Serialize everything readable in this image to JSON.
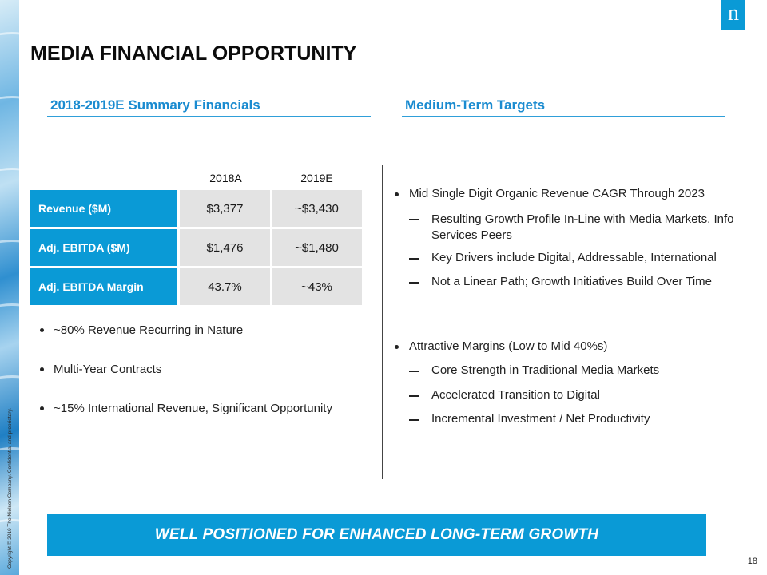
{
  "copyright": "Copyright © 2019 The Nielsen Company. Confidential and proprietary.",
  "logo_glyph": "n",
  "title": "MEDIA FINANCIAL OPPORTUNITY",
  "left_section": {
    "header": "2018-2019E Summary Financials",
    "table": {
      "columns": [
        "2018A",
        "2019E"
      ],
      "rows": [
        {
          "label": "Revenue  ($M)",
          "values": [
            "$3,377",
            "~$3,430"
          ]
        },
        {
          "label": "Adj.  EBITDA  ($M)",
          "values": [
            "$1,476",
            "~$1,480"
          ]
        },
        {
          "label": "Adj.  EBITDA  Margin",
          "values": [
            "43.7%",
            "~43%"
          ]
        }
      ]
    },
    "bullets": [
      "~80%  Revenue  Recurring  in Nature",
      "Multi-Year  Contracts",
      "~15%  International  Revenue,  Significant  Opportunity"
    ]
  },
  "right_section": {
    "header": "Medium-Term Targets",
    "group1": {
      "bullet": "Mid  Single  Digit  Organic  Revenue  CAGR  Through  2023",
      "subs": [
        "Resulting  Growth  Profile  In-Line  with  Media  Markets, Info Services Peers",
        "Key  Drivers  include  Digital,  Addressable,  International",
        "Not  a Linear  Path;  Growth  Initiatives  Build  Over  Time"
      ]
    },
    "group2": {
      "bullet": "Attractive  Margins  (Low  to  Mid  40%s)",
      "subs": [
        "Core  Strength   in  Traditional  Media  Markets",
        "Accelerated  Transition  to  Digital",
        "Incremental  Investment  /  Net  Productivity"
      ]
    }
  },
  "banner": "WELL POSITIONED FOR ENHANCED LONG-TERM GROWTH",
  "page_number": "18",
  "colors": {
    "accent": "#0a9ad6",
    "header_text": "#1a8bd0",
    "cell_bg": "#e3e3e3"
  }
}
